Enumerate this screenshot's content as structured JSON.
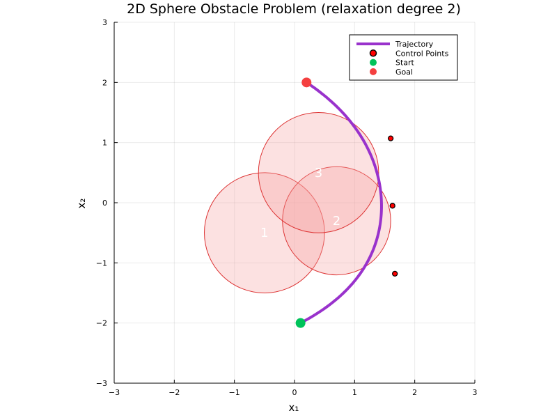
{
  "chart_data": {
    "type": "line",
    "title": "2D Sphere Obstacle Problem (relaxation degree 2)",
    "xlabel": "x₁",
    "ylabel": "x₂",
    "xlim": [
      -3,
      3
    ],
    "ylim": [
      -3,
      3
    ],
    "xticks": [
      -3,
      -2,
      -1,
      0,
      1,
      2,
      3
    ],
    "yticks": [
      -3,
      -2,
      -1,
      0,
      1,
      2,
      3
    ],
    "xtick_labels": [
      "−3",
      "−2",
      "−1",
      "0",
      "1",
      "2",
      "3"
    ],
    "ytick_labels": [
      "−3",
      "−2",
      "−1",
      "0",
      "1",
      "2",
      "3"
    ],
    "grid": true,
    "legend_position": "top-right",
    "obstacles": [
      {
        "label": "1",
        "center": [
          -0.5,
          -0.5
        ],
        "radius": 1.0
      },
      {
        "label": "2",
        "center": [
          0.7,
          -0.3
        ],
        "radius": 0.9
      },
      {
        "label": "3",
        "center": [
          0.4,
          0.5
        ],
        "radius": 1.0
      }
    ],
    "series": [
      {
        "name": "Trajectory",
        "color": "#9932cc",
        "bezier_control_points": [
          [
            0.1,
            -2.0
          ],
          [
            1.67,
            -1.18
          ],
          [
            1.63,
            -0.05
          ],
          [
            1.6,
            1.07
          ],
          [
            0.2,
            2.0
          ]
        ]
      },
      {
        "name": "Control Points",
        "color": "#ff0000",
        "points": [
          [
            1.67,
            -1.18
          ],
          [
            1.63,
            -0.05
          ],
          [
            1.6,
            1.07
          ]
        ]
      },
      {
        "name": "Start",
        "color": "#00c35a",
        "points": [
          [
            0.1,
            -2.0
          ]
        ]
      },
      {
        "name": "Goal",
        "color": "#f44040",
        "points": [
          [
            0.2,
            2.0
          ]
        ]
      }
    ],
    "obstacle_fill": "#f5a3a3",
    "obstacle_edge": "#dd3333"
  }
}
